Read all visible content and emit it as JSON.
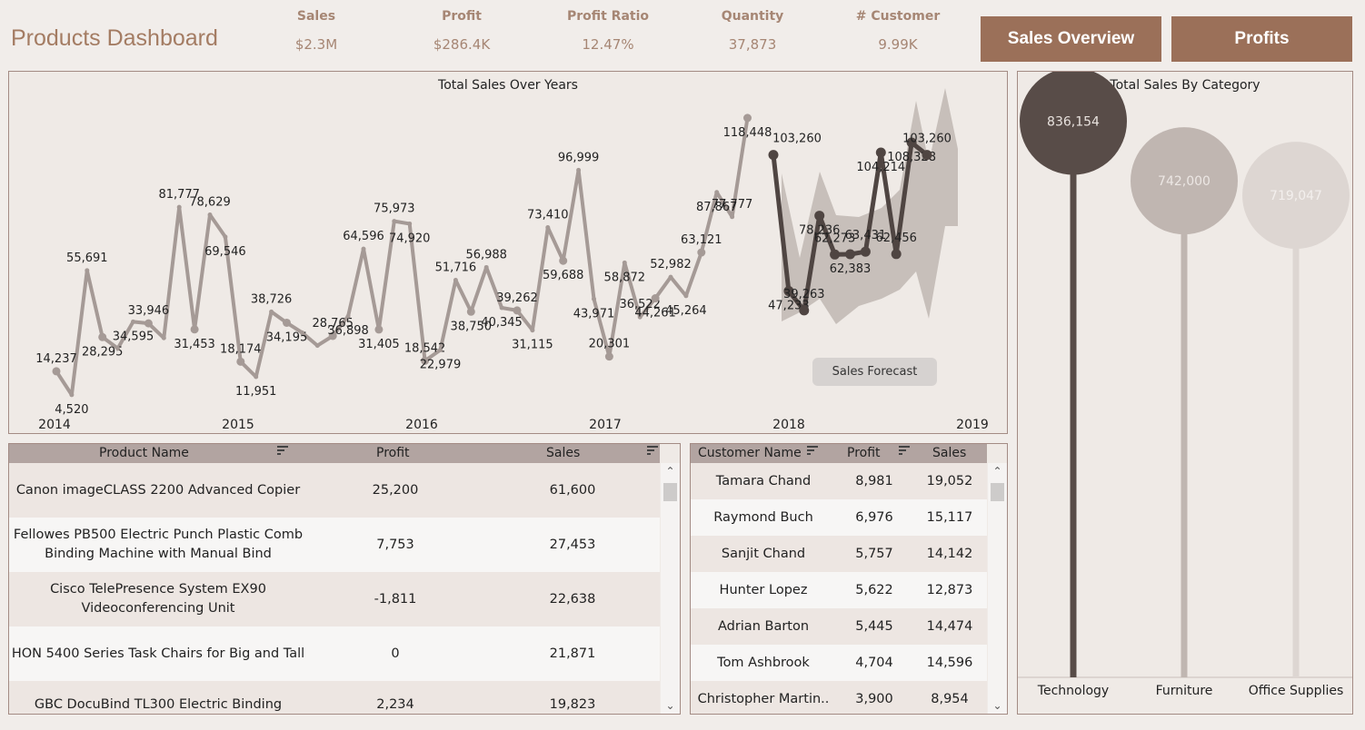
{
  "header": {
    "title": "Products Dashboard",
    "kpis": [
      {
        "label": "Sales",
        "value": "$2.3M"
      },
      {
        "label": "Profit",
        "value": "$286.4K"
      },
      {
        "label": "Profit Ratio",
        "value": "12.47%"
      },
      {
        "label": "Quantity",
        "value": "37,873"
      },
      {
        "label": "# Customer",
        "value": "9.99K"
      }
    ],
    "nav": {
      "sales_overview": "Sales Overview",
      "profits": "Profits"
    }
  },
  "colors": {
    "accent": "#9b7059",
    "actual": "#a59a96",
    "forecast": "#4f4542",
    "band": "#c2bab5"
  },
  "chart_data": [
    {
      "type": "line",
      "title": "Total Sales Over Years",
      "x_tick_labels": [
        "2014",
        "2015",
        "2016",
        "2017",
        "2018",
        "2019"
      ],
      "series": [
        {
          "name": "Actual",
          "values": [
            14237,
            4520,
            55691,
            28295,
            23648,
            34595,
            33946,
            27909,
            81777,
            31453,
            78629,
            69546,
            18174,
            11951,
            38726,
            34195,
            30132,
            24797,
            28765,
            36898,
            64596,
            31405,
            75973,
            74920,
            18542,
            22979,
            51716,
            38750,
            56988,
            40345,
            39262,
            31115,
            73410,
            59688,
            96999,
            43971,
            20301,
            58872,
            36522,
            44261,
            52982,
            45264,
            63121,
            87867,
            77777,
            118448
          ],
          "labels": [
            "14,237",
            "4,520",
            "55,691",
            "28,295",
            "",
            "34,595",
            "33,946",
            "",
            "81,777",
            "31,453",
            "78,629",
            "69,546",
            "18,174",
            "11,951",
            "38,726",
            "34,195",
            "",
            "",
            "28,765",
            "36,898",
            "64,596",
            "31,405",
            "75,973",
            "74,920",
            "18,542",
            "22,979",
            "51,716",
            "38,750",
            "56,988",
            "40,345",
            "39,262",
            "31,115",
            "73,410",
            "59,688",
            "96,999",
            "43,971",
            "20,301",
            "58,872",
            "36,522",
            "44,261",
            "52,982",
            "45,264",
            "63,121",
            "87,867",
            "77,777",
            "118,448"
          ]
        },
        {
          "name": "Sales Forecast",
          "values": [
            103260,
            47233,
            39263,
            78236,
            62273,
            62383,
            63431,
            104214,
            62456,
            108328,
            103260
          ]
        }
      ],
      "forecast_label": "Sales Forecast",
      "ylim": [
        0,
        130000
      ]
    },
    {
      "type": "lollipop",
      "title": "Total Sales By Category",
      "categories": [
        "Technology",
        "Furniture",
        "Office Supplies"
      ],
      "values": [
        836154,
        742000,
        719047
      ],
      "value_labels": [
        "836,154",
        "742,000",
        "719,047"
      ]
    }
  ],
  "products": {
    "columns": [
      "Product Name",
      "Profit",
      "Sales"
    ],
    "rows": [
      {
        "name": "Canon imageCLASS 2200 Advanced Copier",
        "profit": "25,200",
        "sales": "61,600"
      },
      {
        "name": "Fellowes PB500 Electric Punch Plastic Comb Binding Machine with Manual Bind",
        "profit": "7,753",
        "sales": "27,453"
      },
      {
        "name": "Cisco TelePresence System EX90 Videoconferencing Unit",
        "profit": "-1,811",
        "sales": "22,638"
      },
      {
        "name": "HON 5400 Series Task Chairs for Big and Tall",
        "profit": "0",
        "sales": "21,871"
      },
      {
        "name": "GBC DocuBind TL300 Electric Binding System",
        "profit": "2,234",
        "sales": "19,823"
      }
    ]
  },
  "customers": {
    "columns": [
      "Customer Name",
      "Profit",
      "Sales"
    ],
    "rows": [
      {
        "name": "Tamara Chand",
        "profit": "8,981",
        "sales": "19,052"
      },
      {
        "name": "Raymond Buch",
        "profit": "6,976",
        "sales": "15,117"
      },
      {
        "name": "Sanjit Chand",
        "profit": "5,757",
        "sales": "14,142"
      },
      {
        "name": "Hunter Lopez",
        "profit": "5,622",
        "sales": "12,873"
      },
      {
        "name": "Adrian Barton",
        "profit": "5,445",
        "sales": "14,474"
      },
      {
        "name": "Tom Ashbrook",
        "profit": "4,704",
        "sales": "14,596"
      },
      {
        "name": "Christopher Martin..",
        "profit": "3,900",
        "sales": "8,954"
      }
    ]
  }
}
